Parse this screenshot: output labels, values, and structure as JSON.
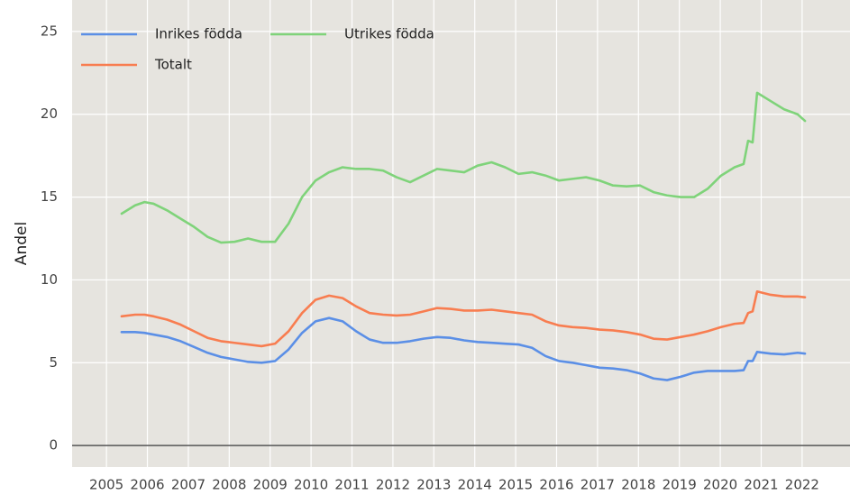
{
  "chart_data": {
    "type": "line",
    "ylabel": "Andel",
    "x": [
      2005.37,
      2005.7,
      2005.93,
      2006.15,
      2006.48,
      2006.81,
      2007.14,
      2007.47,
      2007.8,
      2008.13,
      2008.46,
      2008.79,
      2009.12,
      2009.45,
      2009.78,
      2010.11,
      2010.44,
      2010.77,
      2011.1,
      2011.43,
      2011.76,
      2012.09,
      2012.42,
      2012.75,
      2013.08,
      2013.41,
      2013.74,
      2014.07,
      2014.41,
      2014.74,
      2015.07,
      2015.4,
      2015.73,
      2016.06,
      2016.39,
      2016.72,
      2017.05,
      2017.38,
      2017.71,
      2018.04,
      2018.37,
      2018.7,
      2019.03,
      2019.36,
      2019.69,
      2020.02,
      2020.35,
      2020.57,
      2020.68,
      2020.79,
      2020.9,
      2021.23,
      2021.56,
      2021.89,
      2022.07
    ],
    "series": [
      {
        "name": "Inrikes födda",
        "color": "#5b8fe6",
        "values": [
          6.85,
          6.85,
          6.8,
          6.7,
          6.55,
          6.3,
          5.95,
          5.6,
          5.35,
          5.2,
          5.05,
          5.0,
          5.1,
          5.8,
          6.8,
          7.5,
          7.7,
          7.5,
          6.9,
          6.4,
          6.2,
          6.2,
          6.3,
          6.45,
          6.55,
          6.5,
          6.35,
          6.25,
          6.2,
          6.15,
          6.1,
          5.9,
          5.4,
          5.1,
          5.0,
          4.85,
          4.7,
          4.65,
          4.55,
          4.35,
          4.05,
          3.95,
          4.15,
          4.4,
          4.5,
          4.5,
          4.5,
          4.55,
          5.1,
          5.1,
          5.65,
          5.55,
          5.5,
          5.6,
          5.55
        ]
      },
      {
        "name": "Utrikes födda",
        "color": "#7fd37a",
        "values": [
          14.0,
          14.5,
          14.7,
          14.6,
          14.2,
          13.7,
          13.2,
          12.6,
          12.25,
          12.3,
          12.5,
          12.3,
          12.3,
          13.4,
          15.0,
          16.0,
          16.5,
          16.8,
          16.7,
          16.7,
          16.6,
          16.2,
          15.9,
          16.3,
          16.7,
          16.6,
          16.5,
          16.9,
          17.1,
          16.8,
          16.4,
          16.5,
          16.3,
          16.0,
          16.1,
          16.2,
          16.0,
          15.7,
          15.65,
          15.7,
          15.3,
          15.1,
          15.0,
          15.0,
          15.5,
          16.3,
          16.8,
          17.0,
          18.4,
          18.3,
          21.3,
          20.8,
          20.3,
          20.0,
          19.6
        ]
      },
      {
        "name": "Totalt",
        "color": "#f87d50",
        "values": [
          7.8,
          7.9,
          7.9,
          7.8,
          7.6,
          7.3,
          6.9,
          6.5,
          6.3,
          6.2,
          6.1,
          6.0,
          6.15,
          6.9,
          8.0,
          8.8,
          9.05,
          8.9,
          8.4,
          8.0,
          7.9,
          7.85,
          7.9,
          8.1,
          8.3,
          8.25,
          8.15,
          8.15,
          8.2,
          8.1,
          8.0,
          7.9,
          7.5,
          7.25,
          7.15,
          7.1,
          7.0,
          6.95,
          6.85,
          6.7,
          6.45,
          6.4,
          6.55,
          6.7,
          6.9,
          7.15,
          7.35,
          7.4,
          8.0,
          8.1,
          9.3,
          9.1,
          9.0,
          9.0,
          8.95
        ]
      }
    ],
    "xlim": [
      2004.16,
      2023.17
    ],
    "ylim": [
      -1.3,
      26.9
    ],
    "xticks": [
      2005,
      2006,
      2007,
      2008,
      2009,
      2010,
      2011,
      2012,
      2013,
      2014,
      2015,
      2016,
      2017,
      2018,
      2019,
      2020,
      2021,
      2022
    ],
    "yticks": [
      0,
      5,
      10,
      15,
      20,
      25
    ],
    "hline": 0,
    "grid": true,
    "legend": "top-left"
  }
}
